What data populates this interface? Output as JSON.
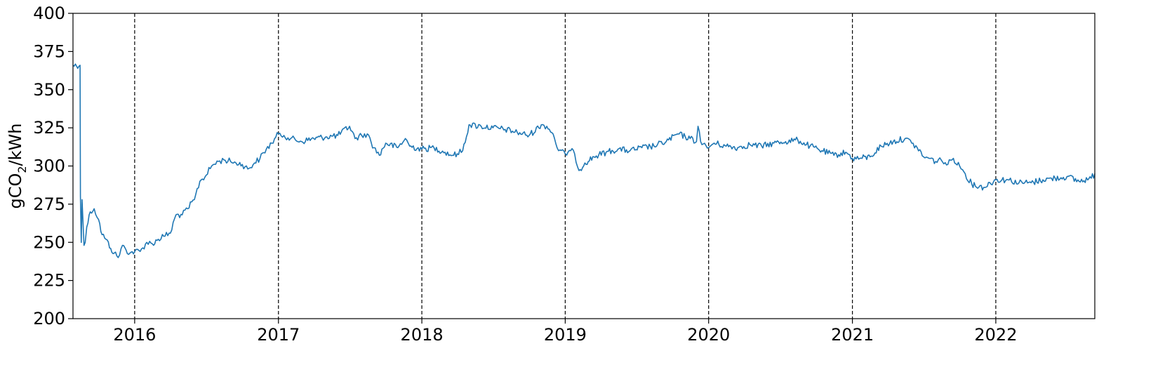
{
  "chart_data": {
    "type": "line",
    "title": "",
    "xlabel": "",
    "ylabel": "gCO2/kWh",
    "ylabel_parts": {
      "prefix": "gCO",
      "subscript": "2",
      "suffix": "/kWh"
    },
    "xlim": [
      "2015-07-28",
      "2022-09-10"
    ],
    "ylim": [
      200,
      400
    ],
    "yticks": [
      200,
      225,
      250,
      275,
      300,
      325,
      350,
      375,
      400
    ],
    "xticks": [
      {
        "date": "2016-01-01",
        "label": "2016"
      },
      {
        "date": "2017-01-01",
        "label": "2017"
      },
      {
        "date": "2018-01-01",
        "label": "2018"
      },
      {
        "date": "2019-01-01",
        "label": "2019"
      },
      {
        "date": "2020-01-01",
        "label": "2020"
      },
      {
        "date": "2021-01-01",
        "label": "2021"
      },
      {
        "date": "2022-01-01",
        "label": "2022"
      }
    ],
    "vlines": [
      "2016-01-01",
      "2017-01-01",
      "2018-01-01",
      "2019-01-01",
      "2020-01-01",
      "2021-01-01",
      "2022-01-01"
    ],
    "grid": false,
    "legend": "none",
    "line_color": "#1f77b4",
    "series": [
      {
        "x": [
          "2015-07-28",
          "2015-08-15",
          "2015-08-16",
          "2015-08-18",
          "2015-08-20",
          "2015-08-25",
          "2015-08-28",
          "2015-09-01",
          "2015-09-10",
          "2015-09-20",
          "2015-10-01",
          "2015-10-10",
          "2015-10-20",
          "2015-11-01",
          "2015-11-10",
          "2015-11-20",
          "2015-12-01",
          "2015-12-10",
          "2015-12-20",
          "2016-01-01",
          "2016-01-15",
          "2016-02-01",
          "2016-02-15",
          "2016-03-01",
          "2016-03-15",
          "2016-04-01",
          "2016-04-15",
          "2016-05-01",
          "2016-05-15",
          "2016-06-01",
          "2016-06-15",
          "2016-07-01",
          "2016-07-15",
          "2016-08-01",
          "2016-08-15",
          "2016-09-01",
          "2016-09-15",
          "2016-10-01",
          "2016-10-15",
          "2016-11-01",
          "2016-11-15",
          "2016-12-01",
          "2016-12-15",
          "2017-01-01",
          "2017-01-15",
          "2017-02-01",
          "2017-03-01",
          "2017-04-01",
          "2017-05-01",
          "2017-06-01",
          "2017-07-01",
          "2017-07-15",
          "2017-08-01",
          "2017-08-15",
          "2017-09-01",
          "2017-09-15",
          "2017-10-01",
          "2017-11-01",
          "2017-11-20",
          "2017-12-01",
          "2018-01-01",
          "2018-02-01",
          "2018-03-01",
          "2018-03-20",
          "2018-04-01",
          "2018-04-15",
          "2018-05-01",
          "2018-06-01",
          "2018-07-01",
          "2018-08-01",
          "2018-09-01",
          "2018-10-01",
          "2018-11-01",
          "2018-11-15",
          "2018-12-01",
          "2018-12-15",
          "2019-01-01",
          "2019-01-15",
          "2019-01-25",
          "2019-02-05",
          "2019-02-20",
          "2019-03-15",
          "2019-04-15",
          "2019-05-15",
          "2019-06-15",
          "2019-07-15",
          "2019-08-15",
          "2019-09-15",
          "2019-10-15",
          "2019-11-15",
          "2019-12-01",
          "2019-12-05",
          "2019-12-15",
          "2020-01-01",
          "2020-01-15",
          "2020-02-15",
          "2020-03-15",
          "2020-04-15",
          "2020-05-15",
          "2020-06-15",
          "2020-07-15",
          "2020-08-15",
          "2020-09-15",
          "2020-10-15",
          "2020-11-15",
          "2020-12-15",
          "2021-01-01",
          "2021-01-20",
          "2021-02-15",
          "2021-03-15",
          "2021-04-15",
          "2021-05-15",
          "2021-06-01",
          "2021-06-15",
          "2021-07-01",
          "2021-07-15",
          "2021-08-01",
          "2021-08-15",
          "2021-09-01",
          "2021-09-15",
          "2021-10-01",
          "2021-10-15",
          "2021-11-01",
          "2021-12-01",
          "2022-01-01",
          "2022-02-01",
          "2022-03-01",
          "2022-04-01",
          "2022-05-01",
          "2022-06-01",
          "2022-07-01",
          "2022-08-01",
          "2022-09-01",
          "2022-09-10"
        ],
        "y": [
          366,
          366,
          280,
          250,
          278,
          248,
          250,
          260,
          270,
          272,
          265,
          255,
          252,
          246,
          243,
          240,
          248,
          245,
          243,
          244,
          244,
          250,
          249,
          252,
          254,
          256,
          268,
          268,
          272,
          278,
          290,
          294,
          300,
          303,
          304,
          303,
          302,
          301,
          298,
          302,
          305,
          311,
          315,
          321,
          320,
          318,
          316,
          318,
          319,
          320,
          326,
          318,
          320,
          321,
          312,
          307,
          315,
          312,
          318,
          313,
          311,
          312,
          309,
          307,
          308,
          310,
          327,
          326,
          325,
          324,
          322,
          320,
          327,
          326,
          321,
          310,
          308,
          310,
          308,
          297,
          302,
          306,
          309,
          311,
          310,
          312,
          313,
          316,
          321,
          318,
          316,
          326,
          314,
          312,
          315,
          313,
          312,
          314,
          313,
          315,
          316,
          317,
          313,
          310,
          307,
          309,
          305,
          305,
          306,
          313,
          316,
          318,
          315,
          312,
          306,
          305,
          303,
          304,
          301,
          305,
          300,
          295,
          288,
          286,
          291,
          291,
          289,
          289,
          291,
          292,
          293,
          290,
          292,
          295
        ]
      }
    ]
  }
}
